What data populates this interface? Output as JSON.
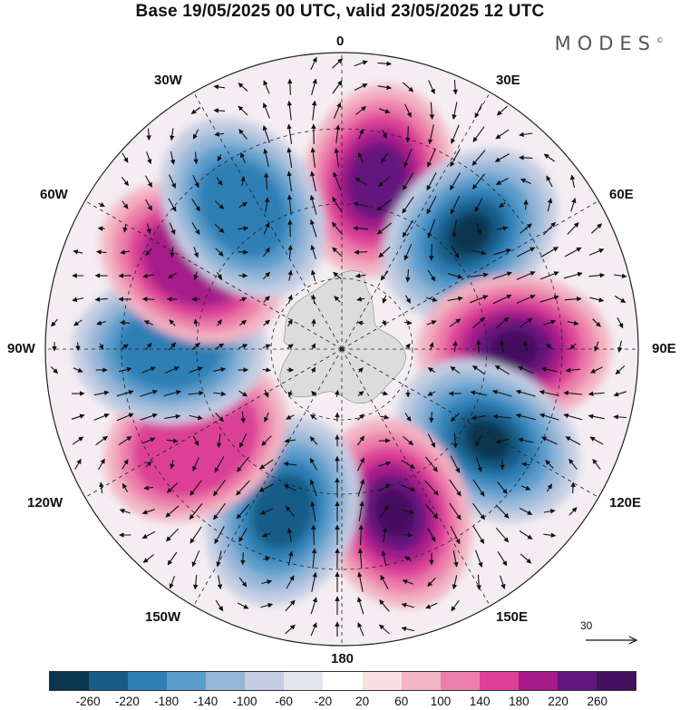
{
  "title": "Base 19/05/2025 00 UTC, valid 23/05/2025 12 UTC",
  "brand": "MODES",
  "brand_mark": "©",
  "longitude_labels": {
    "n0": "0",
    "n30e": "30E",
    "n60e": "60E",
    "n90e": "90E",
    "n120e": "120E",
    "n150e": "150E",
    "n180": "180",
    "n150w": "150W",
    "n120w": "120W",
    "n90w": "90W",
    "n60w": "60W",
    "n30w": "30W"
  },
  "reference_vector": {
    "value": "30"
  },
  "colorbar": {
    "ticks": [
      "-260",
      "-220",
      "-180",
      "-140",
      "-100",
      "-60",
      "-20",
      "20",
      "60",
      "100",
      "140",
      "180",
      "220",
      "260"
    ],
    "colors": [
      "#0b3650",
      "#175b86",
      "#2e7fb5",
      "#5b9dcc",
      "#96b7d8",
      "#c4cde3",
      "#e4e4ef",
      "#ffffff",
      "#f9dfe2",
      "#f3b4c3",
      "#ec7fab",
      "#dc3f96",
      "#a61a8a",
      "#63177d",
      "#44105f"
    ]
  },
  "colors": {
    "land": "#dcdcdc",
    "outline": "#222222"
  },
  "chart_data": {
    "type": "polar-stereographic anomaly map (south pole)",
    "field": "shaded anomaly with wind vectors",
    "extrema_centers": [
      {
        "sign": "positive",
        "bearing_deg": 12,
        "level": 220
      },
      {
        "sign": "negative",
        "bearing_deg": 48,
        "level": -260
      },
      {
        "sign": "positive",
        "bearing_deg": 90,
        "level": 260
      },
      {
        "sign": "negative",
        "bearing_deg": 122,
        "level": -260
      },
      {
        "sign": "positive",
        "bearing_deg": 162,
        "level": 260
      },
      {
        "sign": "negative",
        "bearing_deg": 200,
        "level": -220
      },
      {
        "sign": "positive",
        "bearing_deg": 238,
        "level": 140
      },
      {
        "sign": "negative",
        "bearing_deg": 270,
        "level": -180
      },
      {
        "sign": "positive",
        "bearing_deg": 300,
        "level": 180
      },
      {
        "sign": "negative",
        "bearing_deg": 325,
        "level": -180
      }
    ]
  }
}
